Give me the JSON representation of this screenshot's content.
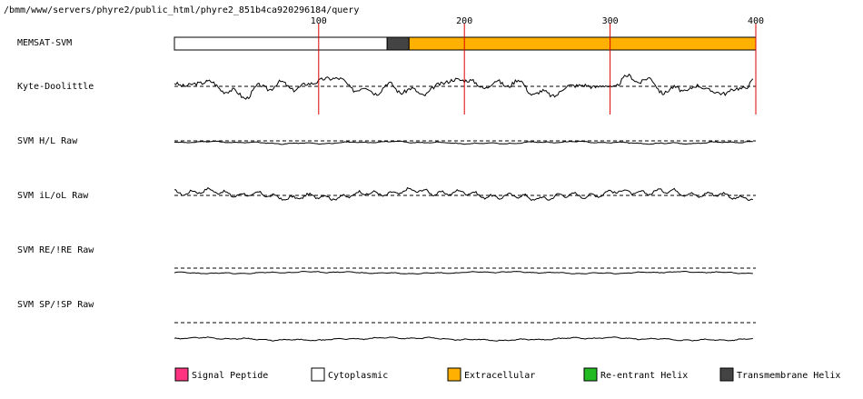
{
  "header": {
    "path": "/bmm/www/servers/phyre2/public_html/phyre2_851b4ca920296184/query"
  },
  "chart_data": {
    "type": "line",
    "x_range": [
      1,
      400
    ],
    "ticks": [
      {
        "value": 100,
        "label": "100"
      },
      {
        "value": 200,
        "label": "200"
      },
      {
        "value": 300,
        "label": "300"
      },
      {
        "value": 400,
        "label": "400"
      }
    ],
    "memsat": {
      "label": "MEMSAT-SVM",
      "segments": [
        {
          "start": 1,
          "end": 147,
          "type": "cytoplasmic"
        },
        {
          "start": 147,
          "end": 162,
          "type": "transmembrane"
        },
        {
          "start": 162,
          "end": 400,
          "type": "extracellular"
        }
      ]
    },
    "tracks": [
      {
        "label": "Kyte-Doolittle",
        "amp": 12,
        "offset": 0,
        "seed": 3,
        "waves": [
          [
            0.21,
            0.35,
            0.0
          ],
          [
            0.45,
            0.06,
            1.7
          ],
          [
            0.34,
            0.15,
            4.1
          ],
          [
            0.2,
            0.42,
            2.2
          ]
        ]
      },
      {
        "label": "SVM H/L Raw",
        "amp": 1.8,
        "offset": 2,
        "seed": 11,
        "waves": [
          [
            0.5,
            0.05,
            0.4
          ],
          [
            0.3,
            0.2,
            2.6
          ],
          [
            0.2,
            0.5,
            5.0
          ]
        ]
      },
      {
        "label": "SVM iL/oL Raw",
        "amp": 7,
        "offset": -1,
        "seed": 17,
        "waves": [
          [
            0.45,
            0.04,
            1.1
          ],
          [
            0.25,
            0.18,
            3.3
          ],
          [
            0.3,
            0.55,
            0.7
          ]
        ]
      },
      {
        "label": "SVM RE/!RE Raw",
        "amp": 1.5,
        "offset": 5,
        "seed": 23,
        "waves": [
          [
            0.5,
            0.05,
            2.9
          ],
          [
            0.3,
            0.22,
            0.2
          ],
          [
            0.2,
            0.6,
            4.4
          ]
        ]
      },
      {
        "label": "SVM SP/!SP Raw",
        "amp": 2.2,
        "offset": 18,
        "seed": 29,
        "waves": [
          [
            0.55,
            0.045,
            0.9
          ],
          [
            0.25,
            0.2,
            3.8
          ],
          [
            0.2,
            0.5,
            1.6
          ]
        ]
      }
    ],
    "legend": [
      {
        "key": "signal",
        "label": "Signal Peptide",
        "color": "#ff3380"
      },
      {
        "key": "cytoplasmic",
        "label": "Cytoplasmic",
        "color": "#ffffff"
      },
      {
        "key": "extracellular",
        "label": "Extracellular",
        "color": "#ffb000"
      },
      {
        "key": "reentrant",
        "label": "Re-entrant Helix",
        "color": "#22bb22"
      },
      {
        "key": "transmembrane",
        "label": "Transmembrane Helix",
        "color": "#444444"
      }
    ]
  }
}
